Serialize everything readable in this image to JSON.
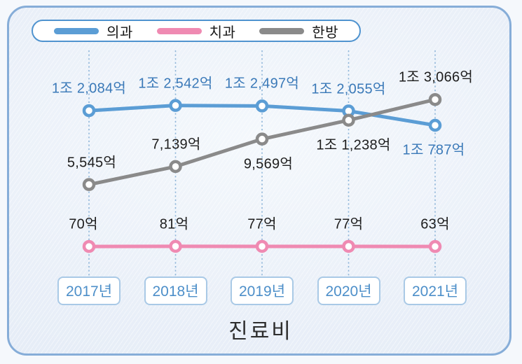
{
  "colors": {
    "frame_border": "#86add8",
    "frame_background": "#e9eff8",
    "legend_border": "#4f93cf",
    "gridline": "#8fb6d9",
    "year_box_border": "#a9c9e6",
    "year_text": "#4d8fc9",
    "marker_fill": "#ffffff",
    "title_text": "#2e2e2e"
  },
  "legend": {
    "items": [
      {
        "label": "의과",
        "color": "#5b9dd5"
      },
      {
        "label": "치과",
        "color": "#ef8ab2"
      },
      {
        "label": "한방",
        "color": "#8a8a8a"
      }
    ]
  },
  "chart_data": {
    "type": "line",
    "title": "진료비",
    "categories": [
      "2017년",
      "2018년",
      "2019년",
      "2020년",
      "2021년"
    ],
    "value_unit": "억",
    "grid": "vertical-dotted",
    "legend_position": "top",
    "series": [
      {
        "name": "의과",
        "color": "#5b9dd5",
        "label_color": "#3a79b8",
        "values": [
          12084,
          12542,
          12497,
          12055,
          10787
        ],
        "value_labels": [
          "1조 2,084억",
          "1조 2,542억",
          "1조 2,497억",
          "1조 2,055억",
          "1조 787억"
        ],
        "label_positions": [
          "above",
          "above",
          "above",
          "above",
          "below"
        ]
      },
      {
        "name": "치과",
        "color": "#ef8ab2",
        "label_color": "#1d1d1d",
        "values": [
          70,
          81,
          77,
          77,
          63
        ],
        "value_labels": [
          "70억",
          "81억",
          "77억",
          "77억",
          "63억"
        ],
        "label_positions": [
          "above",
          "above",
          "above",
          "above",
          "above"
        ]
      },
      {
        "name": "한방",
        "color": "#8a8a8a",
        "label_color": "#1d1d1d",
        "values": [
          5545,
          7139,
          9569,
          11238,
          13066
        ],
        "value_labels": [
          "5,545억",
          "7,139억",
          "9,569억",
          "1조 1,238억",
          "1조 3,066억"
        ],
        "label_positions": [
          "above",
          "above",
          "below",
          "below",
          "above"
        ]
      }
    ]
  }
}
